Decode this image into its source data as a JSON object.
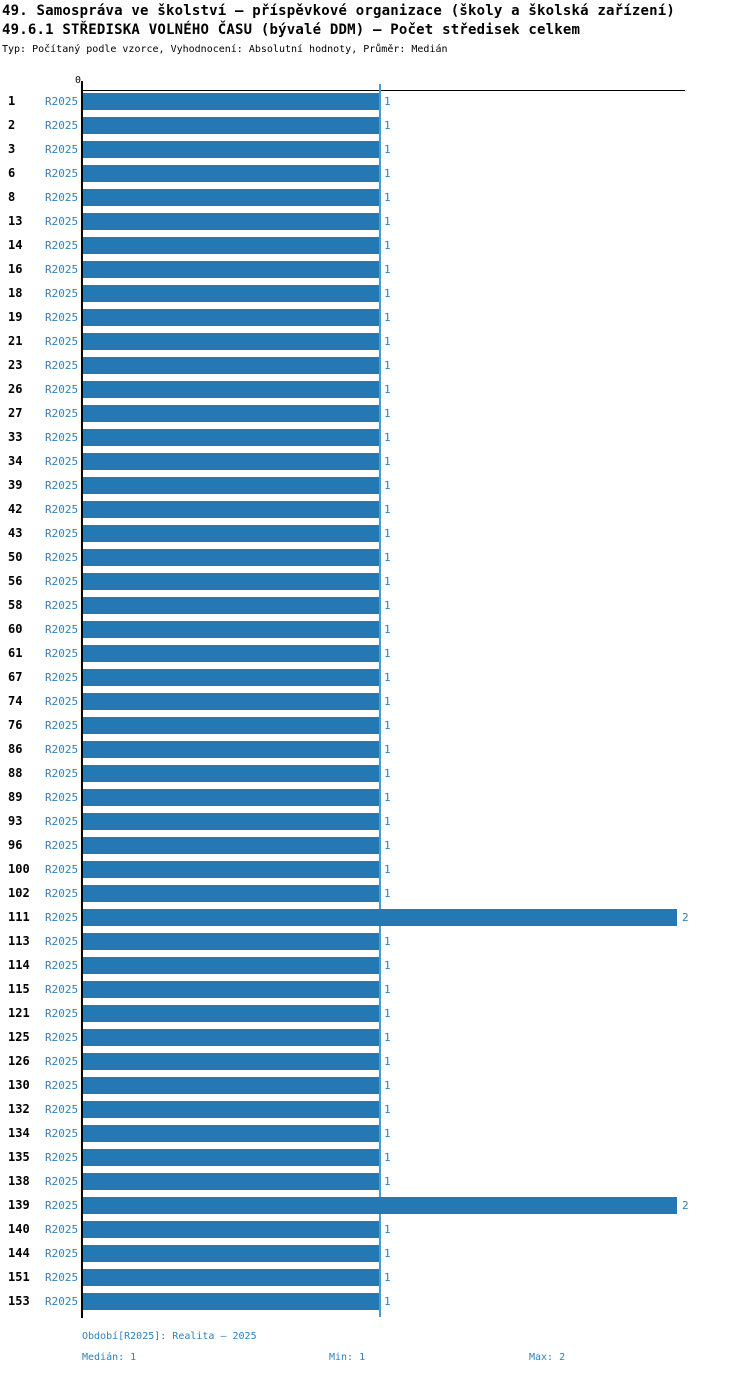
{
  "header": {
    "title_line1": "49. Samospráva ve školství – příspěvkové organizace (školy a školská zařízení)",
    "title_line2": "49.6.1 STŘEDISKA VOLNÉHO ČASU (bývalé DDM) – Počet středisek celkem",
    "subtitle": "Typ: Počítaný podle vzorce, Vyhodnocení: Absolutní hodnoty, Průměr: Medián"
  },
  "chart_data": {
    "type": "bar",
    "orientation": "horizontal",
    "series_label": "R2025",
    "categories": [
      "1",
      "2",
      "3",
      "6",
      "8",
      "13",
      "14",
      "16",
      "18",
      "19",
      "21",
      "23",
      "26",
      "27",
      "33",
      "34",
      "39",
      "42",
      "43",
      "50",
      "56",
      "58",
      "60",
      "61",
      "67",
      "74",
      "76",
      "86",
      "88",
      "89",
      "93",
      "96",
      "100",
      "102",
      "111",
      "113",
      "114",
      "115",
      "121",
      "125",
      "126",
      "130",
      "132",
      "134",
      "135",
      "138",
      "139",
      "140",
      "144",
      "151",
      "153"
    ],
    "values": [
      1,
      1,
      1,
      1,
      1,
      1,
      1,
      1,
      1,
      1,
      1,
      1,
      1,
      1,
      1,
      1,
      1,
      1,
      1,
      1,
      1,
      1,
      1,
      1,
      1,
      1,
      1,
      1,
      1,
      1,
      1,
      1,
      1,
      1,
      2,
      1,
      1,
      1,
      1,
      1,
      1,
      1,
      1,
      1,
      1,
      1,
      2,
      1,
      1,
      1,
      1
    ],
    "xlim": [
      0,
      2.02
    ],
    "x_axis_ticks": [
      "0"
    ],
    "reference_line_value": 1,
    "grid": "vertical reference line at median value 1",
    "legend_position": "none",
    "title": "49.6.1 STŘEDISKA VOLNÉHO ČASU (bývalé DDM) – Počet středisek celkem",
    "xlabel": "",
    "ylabel": ""
  },
  "footer": {
    "period_label": "Období[R2025]: Realita – 2025",
    "median_label": "Medián: 1",
    "min_label": "Min: 1",
    "max_label": "Max: 2"
  },
  "colors": {
    "bar": "#2478b4",
    "blue_text": "#2f81bb",
    "median_line": "#4d99cd",
    "axis": "#000000",
    "background": "#ffffff"
  }
}
